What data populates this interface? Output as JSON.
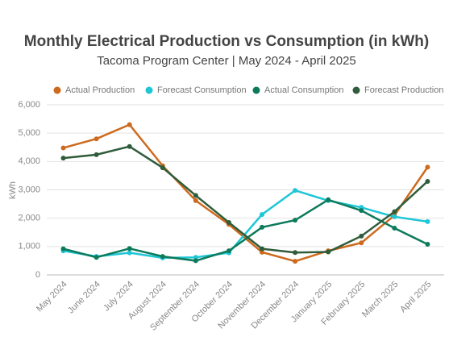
{
  "chart_data": {
    "type": "line",
    "title": "Monthly Electrical Production vs Consumption (in kWh)",
    "subtitle": "Tacoma Program Center  |  May 2024 - April 2025",
    "y_label": "kWh",
    "categories": [
      "May 2024",
      "June 2024",
      "July 2024",
      "August 2024",
      "September 2024",
      "October 2024",
      "November 2024",
      "December 2024",
      "January 2025",
      "February 2025",
      "March 2025",
      "April 2025"
    ],
    "series": [
      {
        "name": "Actual Production",
        "color": "#cd6a1e",
        "values": [
          4480,
          4800,
          5300,
          3850,
          2620,
          1780,
          800,
          480,
          850,
          1130,
          2100,
          3800
        ]
      },
      {
        "name": "Forecast Consumption",
        "color": "#1ec6d6",
        "values": [
          850,
          650,
          780,
          600,
          620,
          780,
          2130,
          2980,
          2620,
          2380,
          2050,
          1880
        ]
      },
      {
        "name": "Actual Consumption",
        "color": "#0d7a5c",
        "values": [
          920,
          620,
          930,
          650,
          500,
          850,
          1680,
          1930,
          2650,
          2270,
          1650,
          1080
        ]
      },
      {
        "name": "Forecast Production",
        "color": "#2f5c3a",
        "values": [
          4120,
          4240,
          4530,
          3780,
          2800,
          1850,
          920,
          790,
          810,
          1370,
          2230,
          3300
        ]
      }
    ],
    "ylim": [
      0,
      6000
    ],
    "yticks": [
      0,
      {
        "value": 1000,
        "label": "1,000"
      },
      {
        "value": 2000,
        "label": "2,000"
      },
      {
        "value": 3000,
        "label": "3,000"
      },
      {
        "value": 4000,
        "label": "4,000"
      },
      {
        "value": 5000,
        "label": "5,000"
      },
      {
        "value": 6000,
        "label": "6,000"
      }
    ],
    "grid": true,
    "legend": "top"
  }
}
